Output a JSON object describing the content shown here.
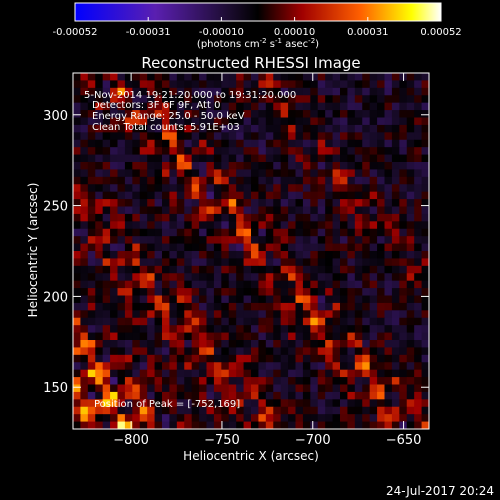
{
  "colorbar": {
    "tick_labels": [
      "-0.00052",
      "-0.00031",
      "-0.00010",
      "0.00010",
      "0.00031",
      "0.00052"
    ],
    "units_text": "(photons cm",
    "units_exp1": "-2",
    "units_mid": " s",
    "units_exp2": "-1",
    "units_end": " asec",
    "units_exp3": "-2",
    "units_close": ")"
  },
  "chart_data": {
    "type": "heatmap",
    "title": "Reconstructed RHESSI Image",
    "xlabel": "Heliocentric X (arcsec)",
    "ylabel": "Heliocentric Y (arcsec)",
    "xlim": [
      -832,
      -636
    ],
    "ylim": [
      127,
      323
    ],
    "x_ticks": [
      -800,
      -750,
      -700,
      -650
    ],
    "y_ticks": [
      150,
      200,
      250,
      300
    ],
    "x_tick_labels": [
      "−800",
      "−750",
      "−700",
      "−650"
    ],
    "y_tick_labels": [
      "150",
      "200",
      "250",
      "300"
    ],
    "value_range": [
      -0.00052,
      0.00052
    ],
    "colormap": [
      "#0000ff",
      "#5a1fb0",
      "#1c0c30",
      "#000000",
      "#a00000",
      "#ff6000",
      "#ffff00",
      "#ffffff"
    ],
    "peak": [
      -752,
      169
    ],
    "grid_cells": 48,
    "annotations": [
      "5-Nov-2014 19:21:20.000 to 19:31:20.000",
      "Detectors: 3F 6F 9F, Att 0",
      "Energy Range: 25.0 - 50.0 keV",
      "Clean    Total counts: 5.91E+03",
      "Position of Peak = [-752,169]"
    ]
  },
  "footer": {
    "date": "24-Jul-2017 20:24"
  }
}
